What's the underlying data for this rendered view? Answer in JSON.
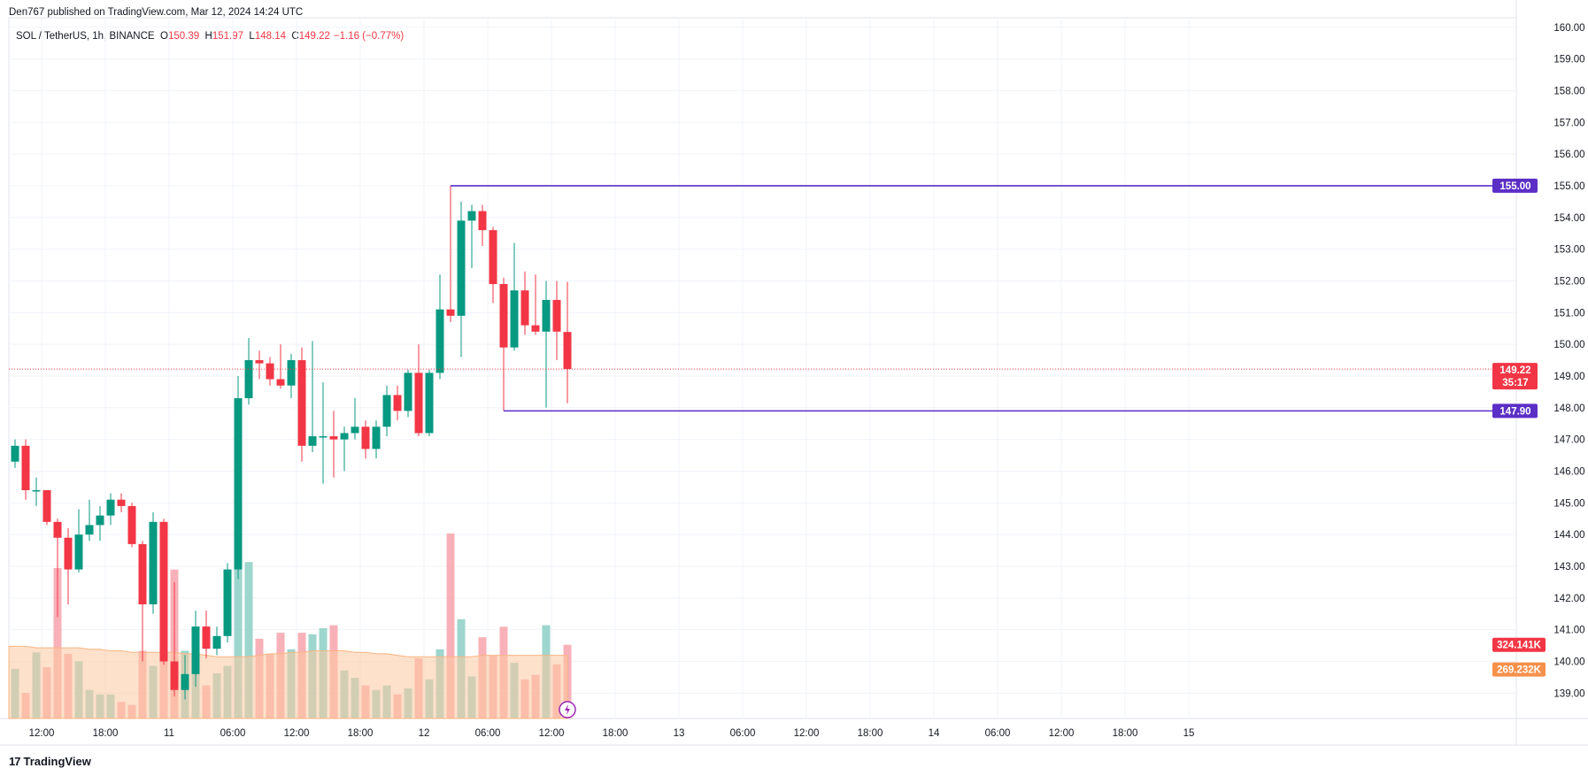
{
  "header": {
    "published_text": "Den767 published on TradingView.com, Mar 12, 2024 14:24 UTC"
  },
  "legend": {
    "symbol": "SOL / TetherUS, 1h, BINANCE",
    "open_label": "O",
    "open": "150.39",
    "high_label": "H",
    "high": "151.97",
    "low_label": "L",
    "low": "148.14",
    "close_label": "C",
    "close": "149.22",
    "change": "−1.16 (−0.77%)"
  },
  "footer": {
    "brand": "TradingView",
    "brand_mark": "17"
  },
  "colors": {
    "up": "#089981",
    "down": "#f23645",
    "up_volume": "#92d2c8",
    "down_volume": "#f7a9b0",
    "volume_ma": "#fdc9a0",
    "level_line": "#5b2ec6",
    "level_tag": "#5b2ec6",
    "price_tag": "#f23645",
    "ma_tag": "#f7904a"
  },
  "chart_data": {
    "type": "candlestick",
    "y_range": [
      138.2,
      160.3
    ],
    "price_ticks": [
      "160.00",
      "159.00",
      "158.00",
      "157.00",
      "156.00",
      "155.00",
      "154.00",
      "153.00",
      "152.00",
      "151.00",
      "150.00",
      "149.00",
      "148.00",
      "147.00",
      "146.00",
      "145.00",
      "144.00",
      "143.00",
      "142.00",
      "141.00",
      "140.00",
      "139.00"
    ],
    "time_labels": [
      {
        "i": 2.5,
        "label": "12:00"
      },
      {
        "i": 8.5,
        "label": "18:00"
      },
      {
        "i": 14.5,
        "label": "11"
      },
      {
        "i": 20.5,
        "label": "06:00"
      },
      {
        "i": 26.5,
        "label": "12:00"
      },
      {
        "i": 32.5,
        "label": "18:00"
      },
      {
        "i": 38.5,
        "label": "12"
      },
      {
        "i": 44.5,
        "label": "06:00"
      },
      {
        "i": 50.5,
        "label": "12:00"
      },
      {
        "i": 56.5,
        "label": "18:00"
      },
      {
        "i": 62.5,
        "label": "13"
      },
      {
        "i": 68.5,
        "label": "06:00"
      },
      {
        "i": 74.5,
        "label": "12:00"
      },
      {
        "i": 80.5,
        "label": "18:00"
      },
      {
        "i": 86.5,
        "label": "14"
      },
      {
        "i": 92.5,
        "label": "06:00"
      },
      {
        "i": 98.5,
        "label": "12:00"
      },
      {
        "i": 104.5,
        "label": "18:00"
      },
      {
        "i": 110.5,
        "label": "15"
      }
    ],
    "candles": [
      {
        "o": 146.3,
        "h": 147.0,
        "l": 146.1,
        "c": 146.8,
        "v": 0.33
      },
      {
        "o": 146.8,
        "h": 147.0,
        "l": 145.1,
        "c": 145.4,
        "v": 0.17
      },
      {
        "o": 145.4,
        "h": 145.8,
        "l": 144.9,
        "c": 145.4,
        "v": 0.44
      },
      {
        "o": 145.4,
        "h": 145.4,
        "l": 144.3,
        "c": 144.4,
        "v": 0.34
      },
      {
        "o": 144.4,
        "h": 144.5,
        "l": 141.4,
        "c": 143.9,
        "v": 1.0
      },
      {
        "o": 143.9,
        "h": 144.2,
        "l": 141.8,
        "c": 142.9,
        "v": 0.43
      },
      {
        "o": 142.9,
        "h": 144.8,
        "l": 142.8,
        "c": 144.0,
        "v": 0.38
      },
      {
        "o": 144.0,
        "h": 145.1,
        "l": 143.8,
        "c": 144.3,
        "v": 0.19
      },
      {
        "o": 144.3,
        "h": 144.9,
        "l": 143.8,
        "c": 144.6,
        "v": 0.16
      },
      {
        "o": 144.6,
        "h": 145.3,
        "l": 144.3,
        "c": 145.1,
        "v": 0.16
      },
      {
        "o": 145.1,
        "h": 145.3,
        "l": 144.7,
        "c": 144.9,
        "v": 0.11
      },
      {
        "o": 144.9,
        "h": 145.0,
        "l": 143.6,
        "c": 143.7,
        "v": 0.09
      },
      {
        "o": 143.7,
        "h": 143.8,
        "l": 140.0,
        "c": 141.8,
        "v": 0.45
      },
      {
        "o": 141.8,
        "h": 144.7,
        "l": 141.5,
        "c": 144.4,
        "v": 0.35
      },
      {
        "o": 144.4,
        "h": 144.5,
        "l": 139.9,
        "c": 140.0,
        "v": 0.75
      },
      {
        "o": 140.0,
        "h": 142.5,
        "l": 138.9,
        "c": 139.1,
        "v": 0.99
      },
      {
        "o": 139.1,
        "h": 140.2,
        "l": 138.8,
        "c": 139.6,
        "v": 0.45
      },
      {
        "o": 139.6,
        "h": 141.6,
        "l": 139.2,
        "c": 141.1,
        "v": 0.33
      },
      {
        "o": 141.1,
        "h": 141.6,
        "l": 140.1,
        "c": 140.4,
        "v": 0.22
      },
      {
        "o": 140.4,
        "h": 141.1,
        "l": 140.2,
        "c": 140.8,
        "v": 0.3
      },
      {
        "o": 140.8,
        "h": 143.1,
        "l": 140.6,
        "c": 142.9,
        "v": 0.35
      },
      {
        "o": 142.9,
        "h": 149.0,
        "l": 142.6,
        "c": 148.3,
        "v": 1.3
      },
      {
        "o": 148.3,
        "h": 150.2,
        "l": 148.1,
        "c": 149.5,
        "v": 1.04
      },
      {
        "o": 149.5,
        "h": 149.8,
        "l": 148.9,
        "c": 149.4,
        "v": 0.53
      },
      {
        "o": 149.4,
        "h": 149.6,
        "l": 148.7,
        "c": 148.9,
        "v": 0.43
      },
      {
        "o": 148.9,
        "h": 150.0,
        "l": 148.6,
        "c": 148.7,
        "v": 0.57
      },
      {
        "o": 148.7,
        "h": 149.7,
        "l": 148.3,
        "c": 149.5,
        "v": 0.46
      },
      {
        "o": 149.5,
        "h": 149.9,
        "l": 146.3,
        "c": 146.8,
        "v": 0.57
      },
      {
        "o": 146.8,
        "h": 150.1,
        "l": 146.6,
        "c": 147.1,
        "v": 0.56
      },
      {
        "o": 147.1,
        "h": 148.8,
        "l": 145.6,
        "c": 147.1,
        "v": 0.6
      },
      {
        "o": 147.1,
        "h": 147.9,
        "l": 145.8,
        "c": 147.0,
        "v": 0.62
      },
      {
        "o": 147.0,
        "h": 147.4,
        "l": 146.0,
        "c": 147.2,
        "v": 0.32
      },
      {
        "o": 147.2,
        "h": 148.3,
        "l": 147.0,
        "c": 147.4,
        "v": 0.27
      },
      {
        "o": 147.4,
        "h": 147.6,
        "l": 146.4,
        "c": 146.7,
        "v": 0.22
      },
      {
        "o": 146.7,
        "h": 147.6,
        "l": 146.4,
        "c": 147.4,
        "v": 0.19
      },
      {
        "o": 147.4,
        "h": 148.7,
        "l": 147.1,
        "c": 148.4,
        "v": 0.22
      },
      {
        "o": 148.4,
        "h": 148.7,
        "l": 147.6,
        "c": 147.9,
        "v": 0.16
      },
      {
        "o": 147.9,
        "h": 149.2,
        "l": 147.7,
        "c": 149.1,
        "v": 0.2
      },
      {
        "o": 149.1,
        "h": 150.0,
        "l": 147.1,
        "c": 147.2,
        "v": 0.4
      },
      {
        "o": 147.2,
        "h": 149.2,
        "l": 147.1,
        "c": 149.1,
        "v": 0.26
      },
      {
        "o": 149.1,
        "h": 152.2,
        "l": 148.9,
        "c": 151.1,
        "v": 0.46
      },
      {
        "o": 151.1,
        "h": 155.0,
        "l": 150.7,
        "c": 150.9,
        "v": 1.23
      },
      {
        "o": 150.9,
        "h": 154.5,
        "l": 149.6,
        "c": 153.9,
        "v": 0.66
      },
      {
        "o": 153.9,
        "h": 154.4,
        "l": 152.4,
        "c": 154.2,
        "v": 0.28
      },
      {
        "o": 154.2,
        "h": 154.4,
        "l": 153.1,
        "c": 153.6,
        "v": 0.54
      },
      {
        "o": 153.6,
        "h": 153.7,
        "l": 151.3,
        "c": 151.9,
        "v": 0.42
      },
      {
        "o": 151.9,
        "h": 152.1,
        "l": 147.9,
        "c": 149.9,
        "v": 0.61
      },
      {
        "o": 149.9,
        "h": 153.2,
        "l": 149.8,
        "c": 151.7,
        "v": 0.37
      },
      {
        "o": 151.7,
        "h": 152.3,
        "l": 150.3,
        "c": 150.6,
        "v": 0.26
      },
      {
        "o": 150.6,
        "h": 152.2,
        "l": 150.3,
        "c": 150.4,
        "v": 0.29
      },
      {
        "o": 150.4,
        "h": 152.0,
        "l": 148.0,
        "c": 151.4,
        "v": 0.62
      },
      {
        "o": 151.4,
        "h": 152.0,
        "l": 149.5,
        "c": 150.4,
        "v": 0.36
      },
      {
        "o": 150.39,
        "h": 151.97,
        "l": 148.14,
        "c": 149.22,
        "v": 0.49
      }
    ],
    "volume_ma": [
      0.48,
      0.48,
      0.47,
      0.47,
      0.47,
      0.47,
      0.47,
      0.46,
      0.46,
      0.45,
      0.45,
      0.44,
      0.44,
      0.44,
      0.44,
      0.44,
      0.43,
      0.43,
      0.42,
      0.41,
      0.41,
      0.41,
      0.41,
      0.42,
      0.43,
      0.43,
      0.44,
      0.44,
      0.45,
      0.45,
      0.45,
      0.45,
      0.44,
      0.44,
      0.43,
      0.43,
      0.42,
      0.41,
      0.41,
      0.41,
      0.41,
      0.41,
      0.41,
      0.41,
      0.42,
      0.42,
      0.42,
      0.42,
      0.42,
      0.42,
      0.42,
      0.42,
      0.42
    ],
    "levels": [
      {
        "price": 155.0,
        "label": "155.00",
        "from_index": 41
      },
      {
        "price": 147.9,
        "label": "147.90",
        "from_index": 46
      }
    ],
    "last_price": {
      "price": 149.22,
      "label": "149.22",
      "countdown": "35:17"
    },
    "volume_tags": [
      {
        "label": "324.141K",
        "kind": "volume"
      },
      {
        "label": "269.232K",
        "kind": "ma"
      }
    ]
  }
}
